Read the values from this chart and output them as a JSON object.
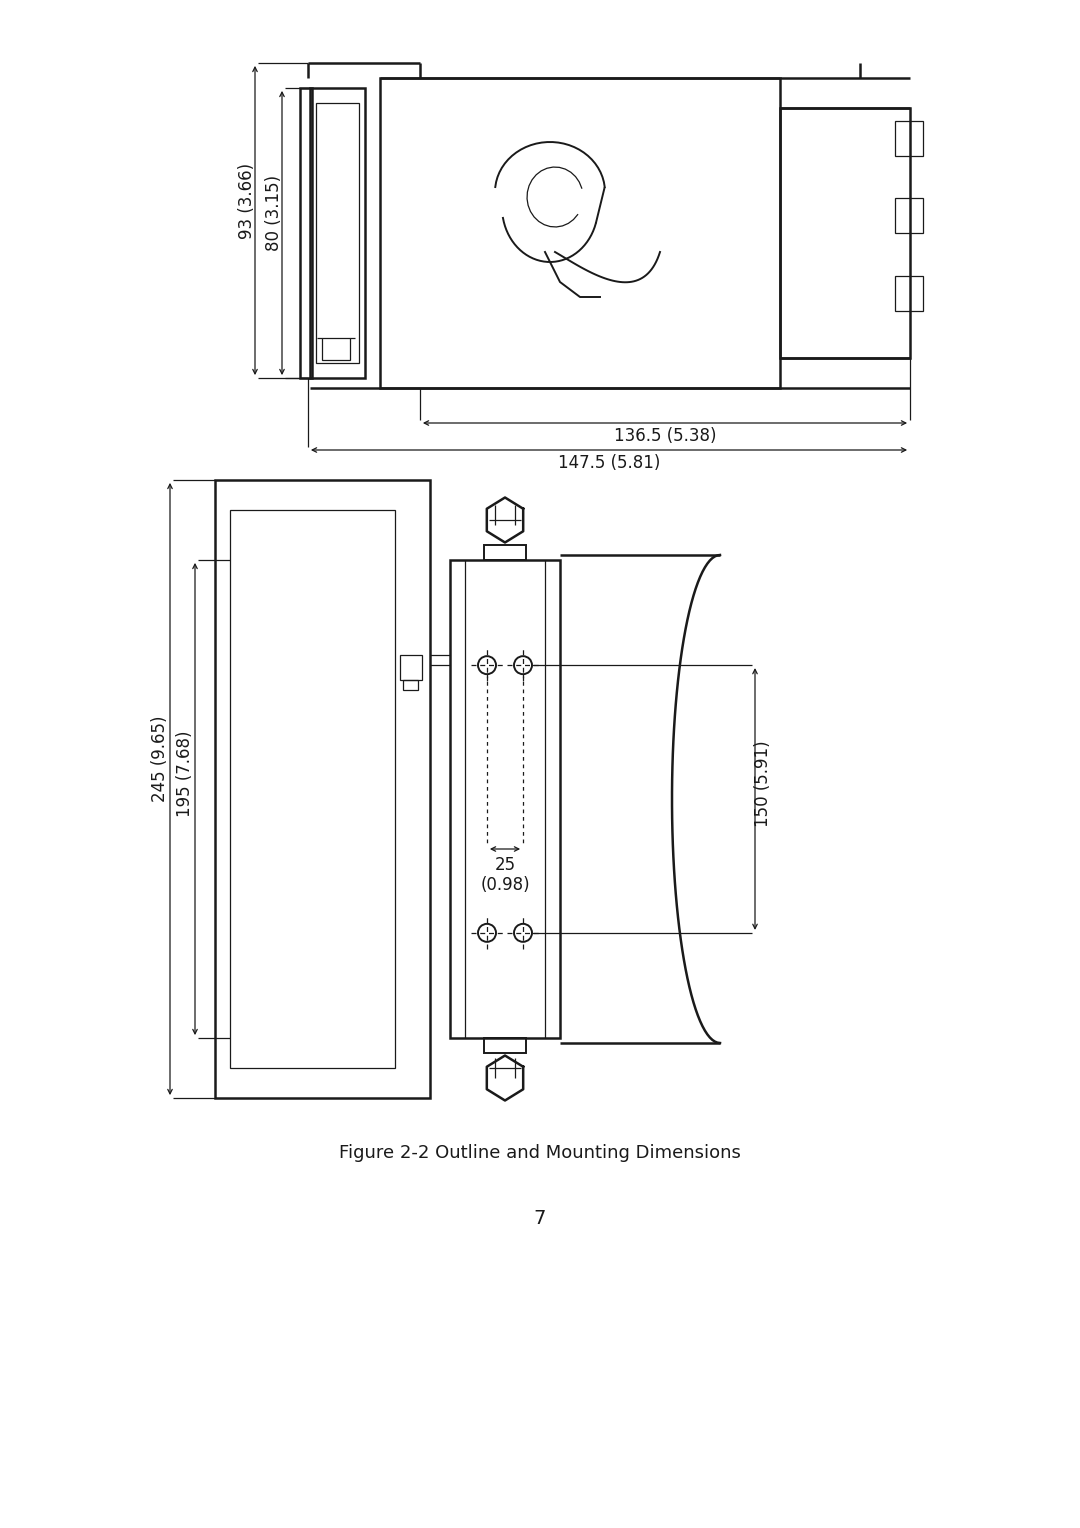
{
  "title": "Figure 2-2 Outline and Mounting Dimensions",
  "page_number": "7",
  "background_color": "#ffffff",
  "line_color": "#1a1a1a",
  "top_view": {
    "dims": {
      "depth1": "93 (3.66)",
      "depth2": "80 (3.15)",
      "width1": "136.5 (5.38)",
      "width2": "147.5 (5.81)"
    }
  },
  "bottom_view": {
    "dims": {
      "height1": "245 (9.65)",
      "height2": "195 (7.68)",
      "height3": "150 (5.91)",
      "hole_spacing": "25",
      "hole_spacing_inch": "(0.98)"
    }
  },
  "font_size_label": 12,
  "font_size_caption": 13,
  "font_size_page": 14
}
